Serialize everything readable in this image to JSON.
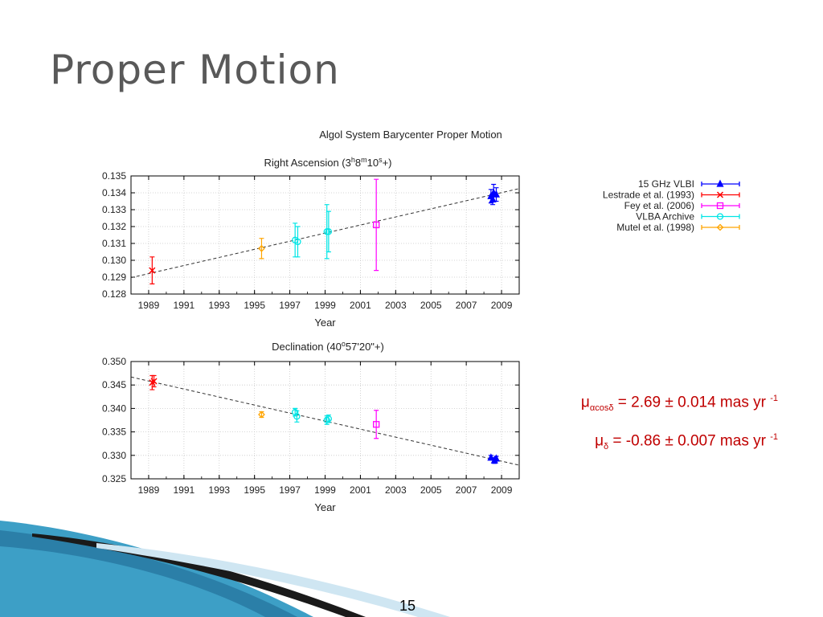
{
  "slide": {
    "title": "Proper Motion",
    "page_number": "15"
  },
  "results": {
    "mu_alpha": {
      "symbol": "μ",
      "sub": "αcosδ",
      "text": " =  2.69 ± 0.014 mas yr ",
      "sup": "-1"
    },
    "mu_delta": {
      "symbol": "μ",
      "sub": "δ",
      "text": " = -0.86 ± 0.007 mas yr ",
      "sup": "-1"
    }
  },
  "colors": {
    "vlbi15": "#0000ff",
    "lestrade": "#ff0000",
    "fey": "#ff00ff",
    "vlba": "#00e5e5",
    "mutel": "#ffa500",
    "results_text": "#c00000"
  },
  "chart_data": [
    {
      "type": "scatter",
      "title": "Algol System Barycenter Proper Motion",
      "subtitle": "Right Ascension (3h8m10s+)",
      "subtitle_parts": {
        "prefix": "Right Ascension (3",
        "h": "h",
        "mid1": "8",
        "m": "m",
        "mid2": "10",
        "s": "s",
        "suffix": "+)"
      },
      "xlabel": "Year",
      "ylabel": "",
      "xlim": [
        1988,
        2010
      ],
      "ylim": [
        0.128,
        0.135
      ],
      "xticks": [
        "1989",
        "1991",
        "1993",
        "1995",
        "1997",
        "1999",
        "2001",
        "2003",
        "2005",
        "2007",
        "2009"
      ],
      "yticks": [
        "0.128",
        "0.129",
        "0.130",
        "0.131",
        "0.132",
        "0.133",
        "0.134",
        "0.135"
      ],
      "grid": true,
      "legend_position": "outside-right",
      "fit_line": {
        "x": [
          1988,
          2010
        ],
        "y": [
          0.12897,
          0.13425
        ]
      },
      "series": [
        {
          "name": "15 GHz VLBI",
          "key": "vlbi15",
          "marker": "triangle",
          "points": [
            {
              "x": 2008.4,
              "y": 0.1338,
              "err": 0.0004
            },
            {
              "x": 2008.55,
              "y": 0.134,
              "err": 0.0005
            },
            {
              "x": 2008.7,
              "y": 0.1339,
              "err": 0.0004
            },
            {
              "x": 2008.5,
              "y": 0.1336,
              "err": 0.0003
            }
          ]
        },
        {
          "name": "Lestrade et al. (1993)",
          "key": "lestrade",
          "marker": "cross",
          "points": [
            {
              "x": 1989.2,
              "y": 0.1294,
              "err": 0.0008
            }
          ]
        },
        {
          "name": "Fey et al. (2006)",
          "key": "fey",
          "marker": "square",
          "points": [
            {
              "x": 2001.9,
              "y": 0.1321,
              "err": 0.0027
            }
          ]
        },
        {
          "name": "VLBA Archive",
          "key": "vlba",
          "marker": "circle",
          "points": [
            {
              "x": 1997.3,
              "y": 0.1312,
              "err": 0.001
            },
            {
              "x": 1997.45,
              "y": 0.1311,
              "err": 0.0009
            },
            {
              "x": 1999.1,
              "y": 0.1317,
              "err": 0.0016
            },
            {
              "x": 1999.2,
              "y": 0.1317,
              "err": 0.0012
            }
          ]
        },
        {
          "name": "Mutel et al. (1998)",
          "key": "mutel",
          "marker": "diamond",
          "points": [
            {
              "x": 1995.4,
              "y": 0.1307,
              "err": 0.0006
            }
          ]
        }
      ]
    },
    {
      "type": "scatter",
      "subtitle": "Declination (40o57'20\"+)",
      "subtitle_parts": {
        "prefix": "Declination (40",
        "deg": "o",
        "suffix": "57'20\"+)"
      },
      "xlabel": "Year",
      "ylabel": "",
      "xlim": [
        1988,
        2010
      ],
      "ylim": [
        0.325,
        0.35
      ],
      "xticks": [
        "1989",
        "1991",
        "1993",
        "1995",
        "1997",
        "1999",
        "2001",
        "2003",
        "2005",
        "2007",
        "2009"
      ],
      "yticks": [
        "0.325",
        "0.330",
        "0.335",
        "0.340",
        "0.345",
        "0.350"
      ],
      "grid": true,
      "fit_line": {
        "x": [
          1988,
          2010
        ],
        "y": [
          0.3467,
          0.3279
        ]
      },
      "series": [
        {
          "key": "lestrade",
          "marker": "cross",
          "points": [
            {
              "x": 1989.2,
              "y": 0.3455,
              "err": 0.0015
            },
            {
              "x": 1989.3,
              "y": 0.3458,
              "err": 0.0012
            }
          ]
        },
        {
          "key": "mutel",
          "marker": "diamond",
          "points": [
            {
              "x": 1995.4,
              "y": 0.3387,
              "err": 0.0006
            }
          ]
        },
        {
          "key": "vlba",
          "marker": "circle",
          "points": [
            {
              "x": 1997.3,
              "y": 0.3392,
              "err": 0.0008
            },
            {
              "x": 1997.4,
              "y": 0.3383,
              "err": 0.0012
            },
            {
              "x": 1999.1,
              "y": 0.3375,
              "err": 0.0009
            },
            {
              "x": 1999.2,
              "y": 0.3378,
              "err": 0.0008
            }
          ]
        },
        {
          "key": "fey",
          "marker": "square",
          "points": [
            {
              "x": 2001.9,
              "y": 0.3366,
              "err": 0.003
            }
          ]
        },
        {
          "key": "vlbi15",
          "marker": "triangle",
          "points": [
            {
              "x": 2008.4,
              "y": 0.3295,
              "err": 0.0005
            },
            {
              "x": 2008.6,
              "y": 0.3289,
              "err": 0.0006
            },
            {
              "x": 2008.7,
              "y": 0.3293,
              "err": 0.0005
            }
          ]
        }
      ]
    }
  ]
}
